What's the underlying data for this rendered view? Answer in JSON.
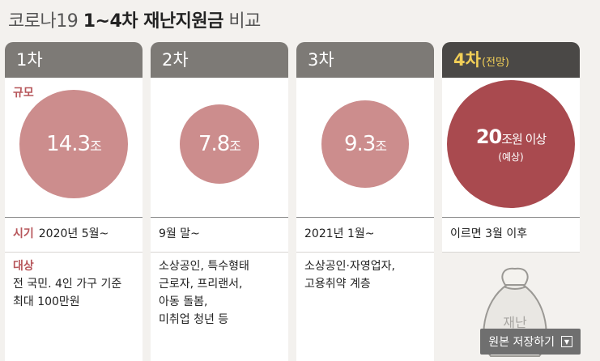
{
  "title": {
    "part1": "코로나19",
    "part2": "1~4차 재난지원금",
    "part3": "비교"
  },
  "labels": {
    "scale": "규모",
    "when": "시기",
    "target": "대상"
  },
  "colors": {
    "bubble": "#cc8d8d",
    "bubble_highlight": "#a94a4f",
    "accent": "#b7565b",
    "round4": "#f2cf57"
  },
  "chart_data": {
    "type": "bubble",
    "title": "코로나19 1~4차 재난지원금 비교",
    "categories": [
      "1차",
      "2차",
      "3차",
      "4차"
    ],
    "unit": "조원",
    "values": [
      14.3,
      7.8,
      9.3,
      20
    ],
    "rounds": [
      {
        "label": "1차",
        "value_text": "14.3",
        "unit_text": "조",
        "when": "2020년 5월~",
        "target": [
          "전 국민. 4인 가구 기준",
          "최대 100만원"
        ]
      },
      {
        "label": "2차",
        "value_text": "7.8",
        "unit_text": "조",
        "when": "9월 말~",
        "target": [
          "소상공인, 특수형태",
          "근로자, 프리랜서,",
          "아동 돌봄,",
          "미취업 청년 등"
        ]
      },
      {
        "label": "3차",
        "value_text": "9.3",
        "unit_text": "조",
        "when": "2021년 1월~",
        "target": [
          "소상공인·자영업자,",
          "고용취약 계층"
        ]
      },
      {
        "label": "4차",
        "sub": "(전망)",
        "value_text": "20",
        "unit_text": "조원 이상",
        "note": "(예상)",
        "when": "이르면 3월 이후",
        "target": []
      }
    ]
  },
  "bag_text": "재난",
  "save_button": {
    "label": "원본 저장하기",
    "icon": "dropdown-icon"
  }
}
